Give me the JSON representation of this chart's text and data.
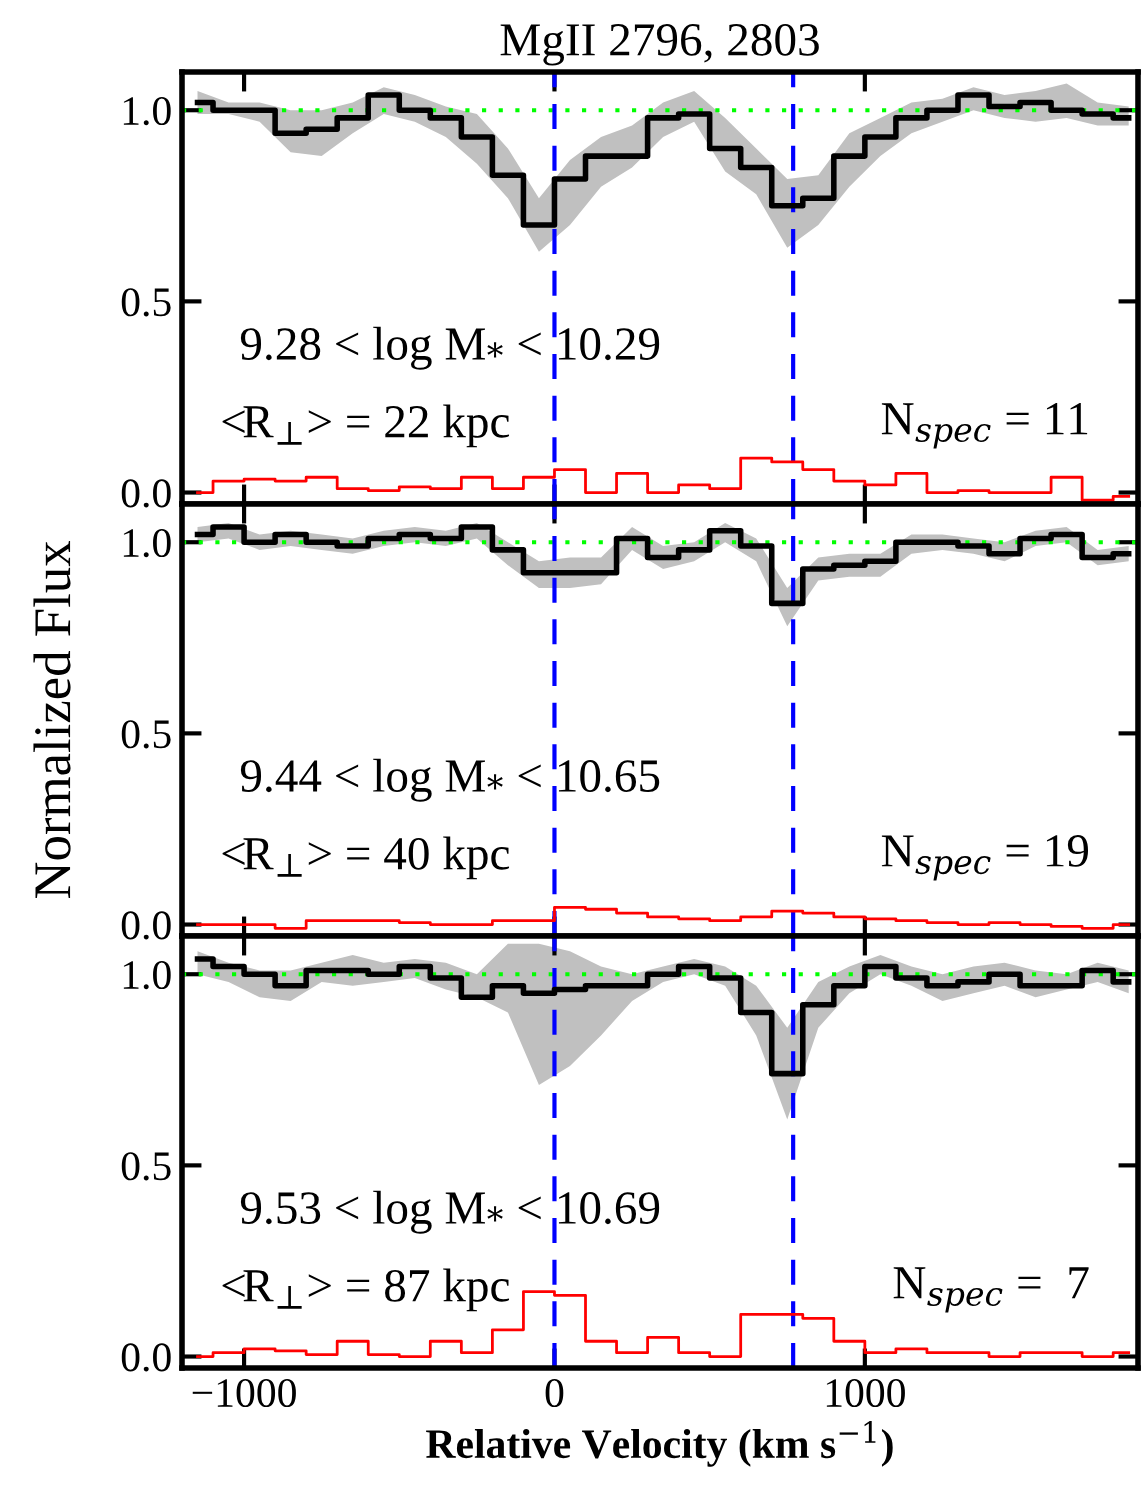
{
  "chart_data": [
    {
      "type": "step",
      "title": "MgII 2796, 2803",
      "x": [
        -1150,
        -1050,
        -950,
        -850,
        -750,
        -650,
        -550,
        -450,
        -350,
        -250,
        -150,
        -50,
        50,
        150,
        250,
        350,
        450,
        550,
        650,
        750,
        850,
        950,
        1050,
        1150,
        1250,
        1350,
        1450,
        1550,
        1650,
        1750,
        1850
      ],
      "series": [
        {
          "color": "#000000",
          "values": [
            1.02,
            1.0,
            1.0,
            0.94,
            0.95,
            0.98,
            1.04,
            1.0,
            0.98,
            0.93,
            0.83,
            0.7,
            0.82,
            0.88,
            0.88,
            0.98,
            0.99,
            0.9,
            0.85,
            0.75,
            0.77,
            0.88,
            0.93,
            0.98,
            1.0,
            1.04,
            1.01,
            1.02,
            1.0,
            0.99,
            0.98
          ],
          "upper": [
            1.05,
            1.02,
            1.02,
            1.0,
            1.0,
            1.02,
            1.06,
            1.04,
            1.01,
            0.99,
            0.9,
            0.77,
            0.87,
            0.93,
            0.96,
            1.02,
            1.05,
            0.98,
            0.9,
            0.82,
            0.83,
            0.94,
            0.98,
            1.02,
            1.03,
            1.06,
            1.04,
            1.05,
            1.07,
            1.02,
            1.01
          ],
          "lower": [
            0.99,
            0.99,
            0.97,
            0.89,
            0.88,
            0.94,
            0.99,
            0.97,
            0.93,
            0.86,
            0.77,
            0.63,
            0.7,
            0.8,
            0.85,
            0.93,
            0.97,
            0.84,
            0.78,
            0.64,
            0.7,
            0.8,
            0.88,
            0.94,
            0.97,
            1.0,
            0.98,
            0.97,
            0.98,
            0.96,
            0.96
          ]
        },
        {
          "color": "#ff0000",
          "values": [
            0.0,
            0.03,
            0.035,
            0.03,
            0.04,
            0.01,
            0.005,
            0.015,
            0.01,
            0.04,
            0.01,
            0.04,
            0.06,
            0.0,
            0.05,
            0.0,
            0.02,
            0.01,
            0.09,
            0.08,
            0.06,
            0.03,
            0.02,
            0.05,
            0.0,
            0.005,
            0.0,
            0.0,
            0.04,
            -0.02,
            -0.01
          ]
        }
      ],
      "xlim": [
        -1200,
        1880
      ],
      "xticks": [
        -1000,
        0,
        1000
      ],
      "ylim": [
        -0.03,
        1.1
      ],
      "yticks": [
        {
          "value": 0,
          "label": "0.0"
        },
        {
          "value": 0.5,
          "label": "0.5"
        },
        {
          "value": 1.0,
          "label": "1.0"
        }
      ],
      "tick_labels": "y",
      "ref_lines": [
        {
          "axis": "y",
          "value": 1.0,
          "color": "#00ff00",
          "line_style": "dotted"
        },
        {
          "axis": "x",
          "value": 0,
          "color": "#0000ff",
          "line_style": "dashed"
        },
        {
          "axis": "x",
          "value": 769,
          "color": "#0000ff",
          "line_style": "dashed"
        }
      ],
      "annotations": [
        "9.28 < log M$_{*}$ < 10.29",
        "<R$_{⊥}$> = 22 kpc",
        "N$_{spec}$ = 11"
      ]
    },
    {
      "type": "step",
      "ylabel": "Normalized Flux",
      "x": [
        -1150,
        -1050,
        -950,
        -850,
        -750,
        -650,
        -550,
        -450,
        -350,
        -250,
        -150,
        -50,
        50,
        150,
        250,
        350,
        450,
        550,
        650,
        750,
        850,
        950,
        1050,
        1150,
        1250,
        1350,
        1450,
        1550,
        1650,
        1750,
        1850
      ],
      "series": [
        {
          "color": "#000000",
          "values": [
            1.02,
            1.04,
            1.0,
            1.02,
            1.0,
            0.99,
            1.01,
            1.02,
            1.01,
            1.04,
            0.98,
            0.92,
            0.92,
            0.92,
            1.01,
            0.96,
            0.98,
            1.03,
            0.99,
            0.84,
            0.93,
            0.94,
            0.95,
            1.0,
            1.0,
            0.99,
            0.97,
            1.01,
            1.02,
            0.96,
            0.97
          ],
          "upper": [
            1.04,
            1.05,
            1.02,
            1.03,
            1.02,
            1.01,
            1.03,
            1.04,
            1.03,
            1.05,
            1.0,
            0.95,
            0.96,
            0.96,
            1.04,
            0.99,
            1.0,
            1.05,
            1.01,
            0.88,
            0.96,
            0.97,
            0.97,
            1.02,
            1.02,
            1.01,
            1.0,
            1.03,
            1.04,
            0.98,
            0.99
          ],
          "lower": [
            1.0,
            1.01,
            0.98,
            0.99,
            0.98,
            0.97,
            0.99,
            1.0,
            0.99,
            1.01,
            0.94,
            0.88,
            0.88,
            0.89,
            0.98,
            0.93,
            0.95,
            1.0,
            0.95,
            0.78,
            0.9,
            0.91,
            0.91,
            0.97,
            0.98,
            0.97,
            0.95,
            0.99,
            1.0,
            0.94,
            0.95
          ]
        },
        {
          "color": "#ff0000",
          "values": [
            0.0,
            0.0,
            0.0,
            -0.01,
            0.01,
            0.01,
            0.01,
            0.005,
            0.0,
            0.0,
            0.01,
            0.01,
            0.045,
            0.04,
            0.03,
            0.02,
            0.015,
            0.01,
            0.02,
            0.035,
            0.03,
            0.02,
            0.015,
            0.01,
            0.005,
            0.0,
            0.005,
            0.0,
            -0.005,
            -0.01,
            0.0
          ]
        }
      ],
      "xlim": [
        -1200,
        1880
      ],
      "xticks": [
        -1000,
        0,
        1000
      ],
      "ylim": [
        -0.03,
        1.1
      ],
      "yticks": [
        {
          "value": 0,
          "label": "0.0"
        },
        {
          "value": 0.5,
          "label": "0.5"
        },
        {
          "value": 1.0,
          "label": "1.0"
        }
      ],
      "tick_labels": "y",
      "ref_lines": [
        {
          "axis": "y",
          "value": 1.0,
          "color": "#00ff00",
          "line_style": "dotted"
        },
        {
          "axis": "x",
          "value": 0,
          "color": "#0000ff",
          "line_style": "dashed"
        },
        {
          "axis": "x",
          "value": 769,
          "color": "#0000ff",
          "line_style": "dashed"
        }
      ],
      "annotations": [
        "9.44 < log M$_{*}$ < 10.65",
        "<R$_{⊥}$> = 40 kpc",
        "N$_{spec}$ = 19"
      ]
    },
    {
      "type": "step",
      "xlabel": "Relative Velocity (km s$^{−1}$)",
      "x": [
        -1150,
        -1050,
        -950,
        -850,
        -750,
        -650,
        -550,
        -450,
        -350,
        -250,
        -150,
        -50,
        50,
        150,
        250,
        350,
        450,
        550,
        650,
        750,
        850,
        950,
        1050,
        1150,
        1250,
        1350,
        1450,
        1550,
        1650,
        1750,
        1850
      ],
      "series": [
        {
          "color": "#000000",
          "values": [
            1.04,
            1.02,
            1.0,
            0.97,
            1.01,
            1.01,
            1.0,
            1.02,
            0.99,
            0.94,
            0.97,
            0.95,
            0.96,
            0.97,
            0.97,
            1.0,
            1.02,
            0.99,
            0.9,
            0.74,
            0.92,
            0.97,
            1.02,
            0.99,
            0.97,
            0.98,
            1.0,
            0.97,
            0.97,
            1.01,
            0.98
          ],
          "upper": [
            1.06,
            1.03,
            1.01,
            1.01,
            1.03,
            1.05,
            1.03,
            1.04,
            1.03,
            1.0,
            1.08,
            1.08,
            1.06,
            1.02,
            1.0,
            1.02,
            1.04,
            1.02,
            0.97,
            0.86,
            0.98,
            1.02,
            1.05,
            1.02,
            1.0,
            1.02,
            1.03,
            1.01,
            1.0,
            1.03,
            1.01
          ],
          "lower": [
            1.0,
            0.98,
            0.94,
            0.93,
            0.98,
            0.97,
            0.98,
            0.99,
            0.96,
            0.94,
            0.9,
            0.71,
            0.76,
            0.84,
            0.93,
            0.98,
            1.0,
            0.97,
            0.84,
            0.62,
            0.86,
            0.95,
            1.0,
            0.97,
            0.93,
            0.95,
            0.97,
            0.94,
            0.96,
            0.98,
            0.95
          ]
        },
        {
          "color": "#ff0000",
          "values": [
            0.0,
            0.01,
            0.02,
            0.015,
            0.005,
            0.04,
            0.005,
            0.0,
            0.04,
            0.01,
            0.07,
            0.17,
            0.16,
            0.04,
            0.01,
            0.05,
            0.01,
            0.0,
            0.11,
            0.11,
            0.1,
            0.04,
            0.01,
            0.02,
            0.01,
            0.01,
            0.0,
            0.01,
            0.01,
            0.0,
            0.01
          ]
        }
      ],
      "xlim": [
        -1200,
        1880
      ],
      "xticks": [
        -1000,
        0,
        1000
      ],
      "ylim": [
        -0.03,
        1.1
      ],
      "yticks": [
        {
          "value": 0,
          "label": "0.0"
        },
        {
          "value": 0.5,
          "label": "0.5"
        },
        {
          "value": 1.0,
          "label": "1.0"
        }
      ],
      "ref_lines": [
        {
          "axis": "y",
          "value": 1.0,
          "color": "#00ff00",
          "line_style": "dotted"
        },
        {
          "axis": "x",
          "value": 0,
          "color": "#0000ff",
          "line_style": "dashed"
        },
        {
          "axis": "x",
          "value": 769,
          "color": "#0000ff",
          "line_style": "dashed"
        }
      ],
      "annotations": [
        "9.53 < log M$_{*}$ < 10.69",
        "<R$_{⊥}$> = 87 kpc",
        "N$_{spec}$ =  7"
      ]
    }
  ]
}
